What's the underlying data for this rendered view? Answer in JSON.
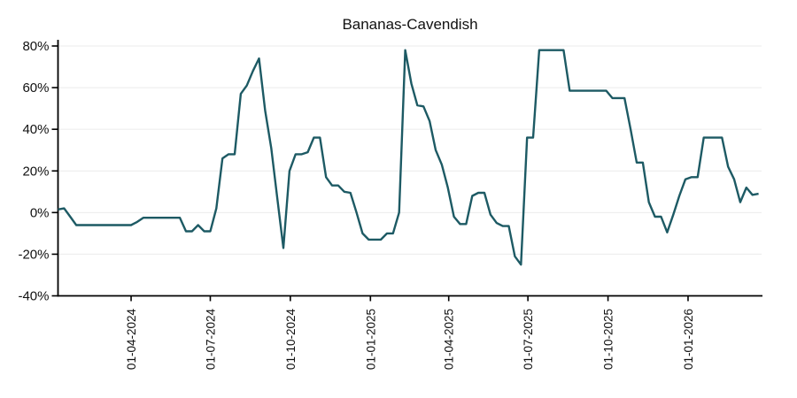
{
  "title": "Bananas-Cavendish",
  "chart_data": {
    "type": "line",
    "title": "Bananas-Cavendish",
    "legend": "none",
    "grid": "horizontal-only",
    "background": "#ffffff",
    "grid_color": "#ebebeb",
    "axis_color": "#000000",
    "ylim": [
      -40,
      80
    ],
    "y_unit": "%",
    "y_ticks": [
      {
        "label": "80%",
        "value": 80
      },
      {
        "label": "60%",
        "value": 60
      },
      {
        "label": "40%",
        "value": 40
      },
      {
        "label": "20%",
        "value": 20
      },
      {
        "label": "0%",
        "value": 0
      },
      {
        "label": "-20%",
        "value": -20
      },
      {
        "label": "-40%",
        "value": -40
      }
    ],
    "x_unit": "weeks",
    "x_axis_weeks_min": 0,
    "x_axis_weeks_max": 115.5,
    "x_ticks": [
      {
        "label": "01-04-2024",
        "week": 12.0
      },
      {
        "label": "01-07-2024",
        "week": 25.0
      },
      {
        "label": "01-10-2024",
        "week": 38.14
      },
      {
        "label": "01-01-2025",
        "week": 51.29
      },
      {
        "label": "01-04-2025",
        "week": 64.14
      },
      {
        "label": "01-07-2025",
        "week": 77.14
      },
      {
        "label": "01-10-2025",
        "week": 90.29
      },
      {
        "label": "01-01-2026",
        "week": 103.43
      }
    ],
    "series": [
      {
        "name": "Bananas-Cavendish",
        "color": "#1d5a64",
        "values": [
          1.5,
          2,
          -2,
          -6,
          -6,
          -6,
          -6,
          -6,
          -6,
          -6,
          -6,
          -6,
          -6,
          -4.5,
          -2.5,
          -2.5,
          -2.5,
          -2.5,
          -2.5,
          -2.5,
          -2.5,
          -9,
          -9,
          -6,
          -9,
          -9,
          2,
          26,
          28,
          28,
          57,
          61,
          68,
          74,
          49,
          31,
          7,
          -17,
          20,
          28,
          28,
          29,
          36,
          36,
          17,
          13,
          13,
          10,
          9.5,
          0,
          -10,
          -13,
          -13,
          -13,
          -10,
          -10,
          0,
          78,
          62,
          51.5,
          51,
          44,
          30,
          23,
          12,
          -2,
          -5.5,
          -5.5,
          8,
          9.5,
          9.5,
          -1,
          -5,
          -6.5,
          -6.5,
          -21,
          -25,
          36,
          36,
          78,
          78,
          78,
          78,
          78,
          58.5,
          58.5,
          58.5,
          58.5,
          58.5,
          58.5,
          58.5,
          55,
          55,
          55,
          40,
          24,
          24,
          5,
          -2,
          -2,
          -9.5,
          -1,
          8,
          16,
          17,
          17,
          36,
          36,
          36,
          36,
          22,
          16,
          5,
          12,
          8.5,
          9
        ]
      }
    ]
  }
}
